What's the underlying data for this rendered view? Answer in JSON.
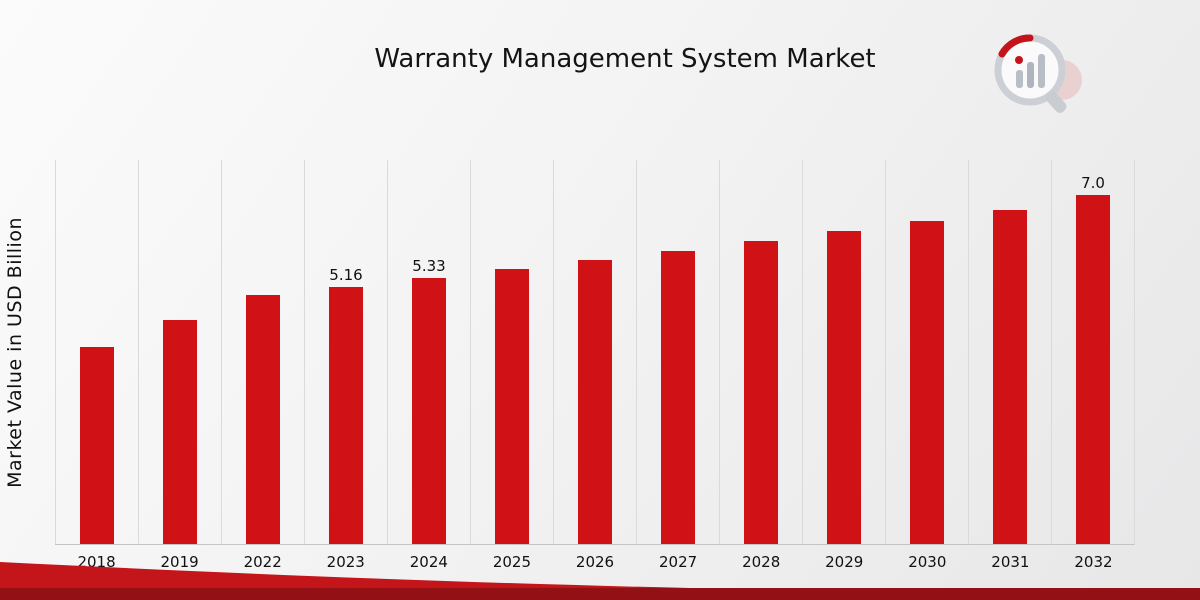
{
  "page": {
    "title": "Warranty Management System Market",
    "y_axis_label": "Market Value in USD Billion"
  },
  "chart_data": {
    "type": "bar",
    "title": "Warranty Management System Market",
    "xlabel": "",
    "ylabel": "Market Value in USD Billion",
    "categories": [
      "2018",
      "2019",
      "2022",
      "2023",
      "2024",
      "2025",
      "2026",
      "2027",
      "2028",
      "2029",
      "2030",
      "2031",
      "2032"
    ],
    "values": [
      3.95,
      4.5,
      5.0,
      5.16,
      5.33,
      5.51,
      5.69,
      5.88,
      6.07,
      6.27,
      6.48,
      6.69,
      7.0
    ],
    "point_labels": {
      "2023": "5.16",
      "2024": "5.33",
      "2032": "7.0"
    },
    "ylim": [
      0,
      7.7
    ],
    "bar_color": "#d01217",
    "grid": "vertical-light-gray",
    "legend": "none"
  },
  "branding": {
    "logo": "market-research-chart-magnifier-logo",
    "ribbon_color_light": "#c4151a",
    "ribbon_color_dark": "#931014"
  }
}
